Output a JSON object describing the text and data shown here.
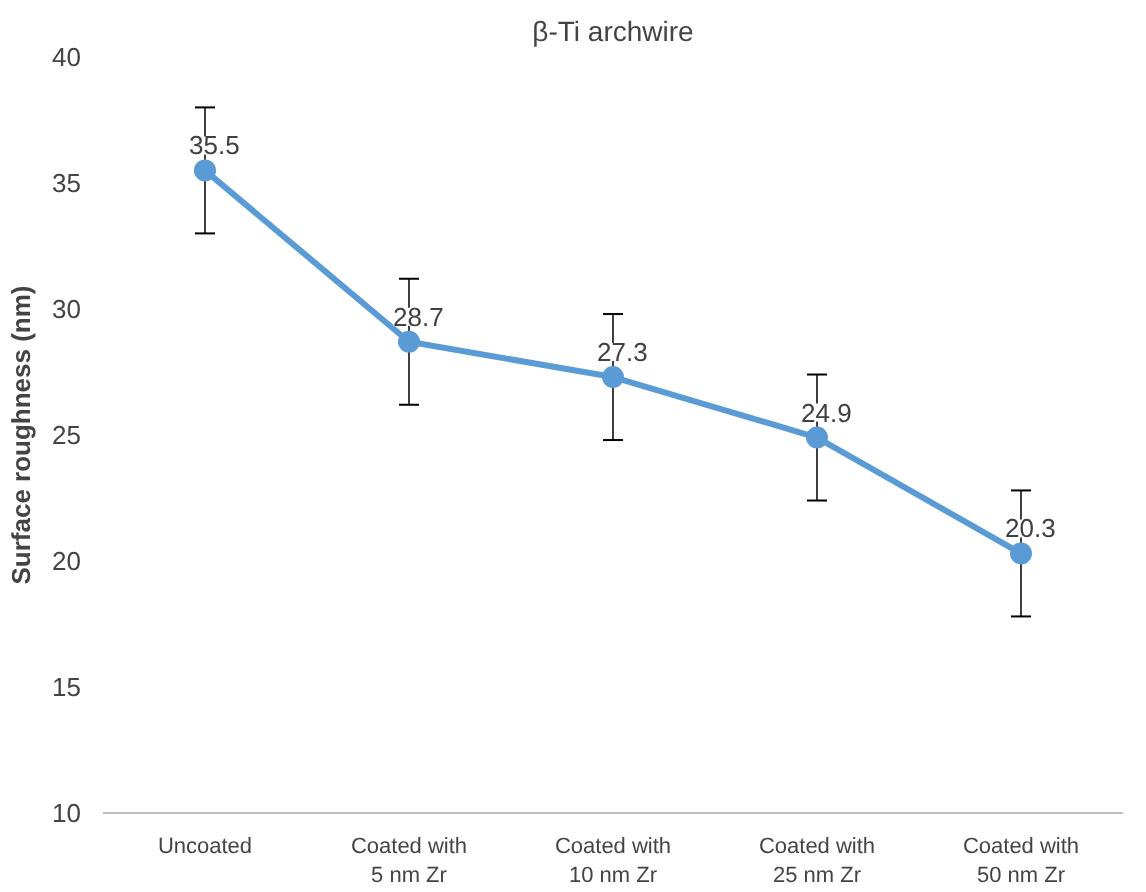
{
  "chart_data": {
    "type": "line",
    "title": "β-Ti archwire",
    "ylabel": "Surface roughness (nm)",
    "categories": [
      "Uncoated",
      "Coated with 5 nm Zr",
      "Coated with 10 nm Zr",
      "Coated with 25 nm Zr",
      "Coated with 50 nm Zr"
    ],
    "series": [
      {
        "color": "#5b9bd5",
        "values": [
          35.5,
          28.7,
          27.3,
          24.9,
          20.3
        ],
        "errors": [
          2.5,
          2.5,
          2.5,
          2.5,
          2.5
        ]
      }
    ],
    "ylim": [
      10,
      40
    ],
    "yticks": [
      10,
      15,
      20,
      25,
      30,
      35,
      40
    ],
    "grid": false,
    "marker": "circle",
    "line_style": "solid",
    "data_labels": true
  }
}
